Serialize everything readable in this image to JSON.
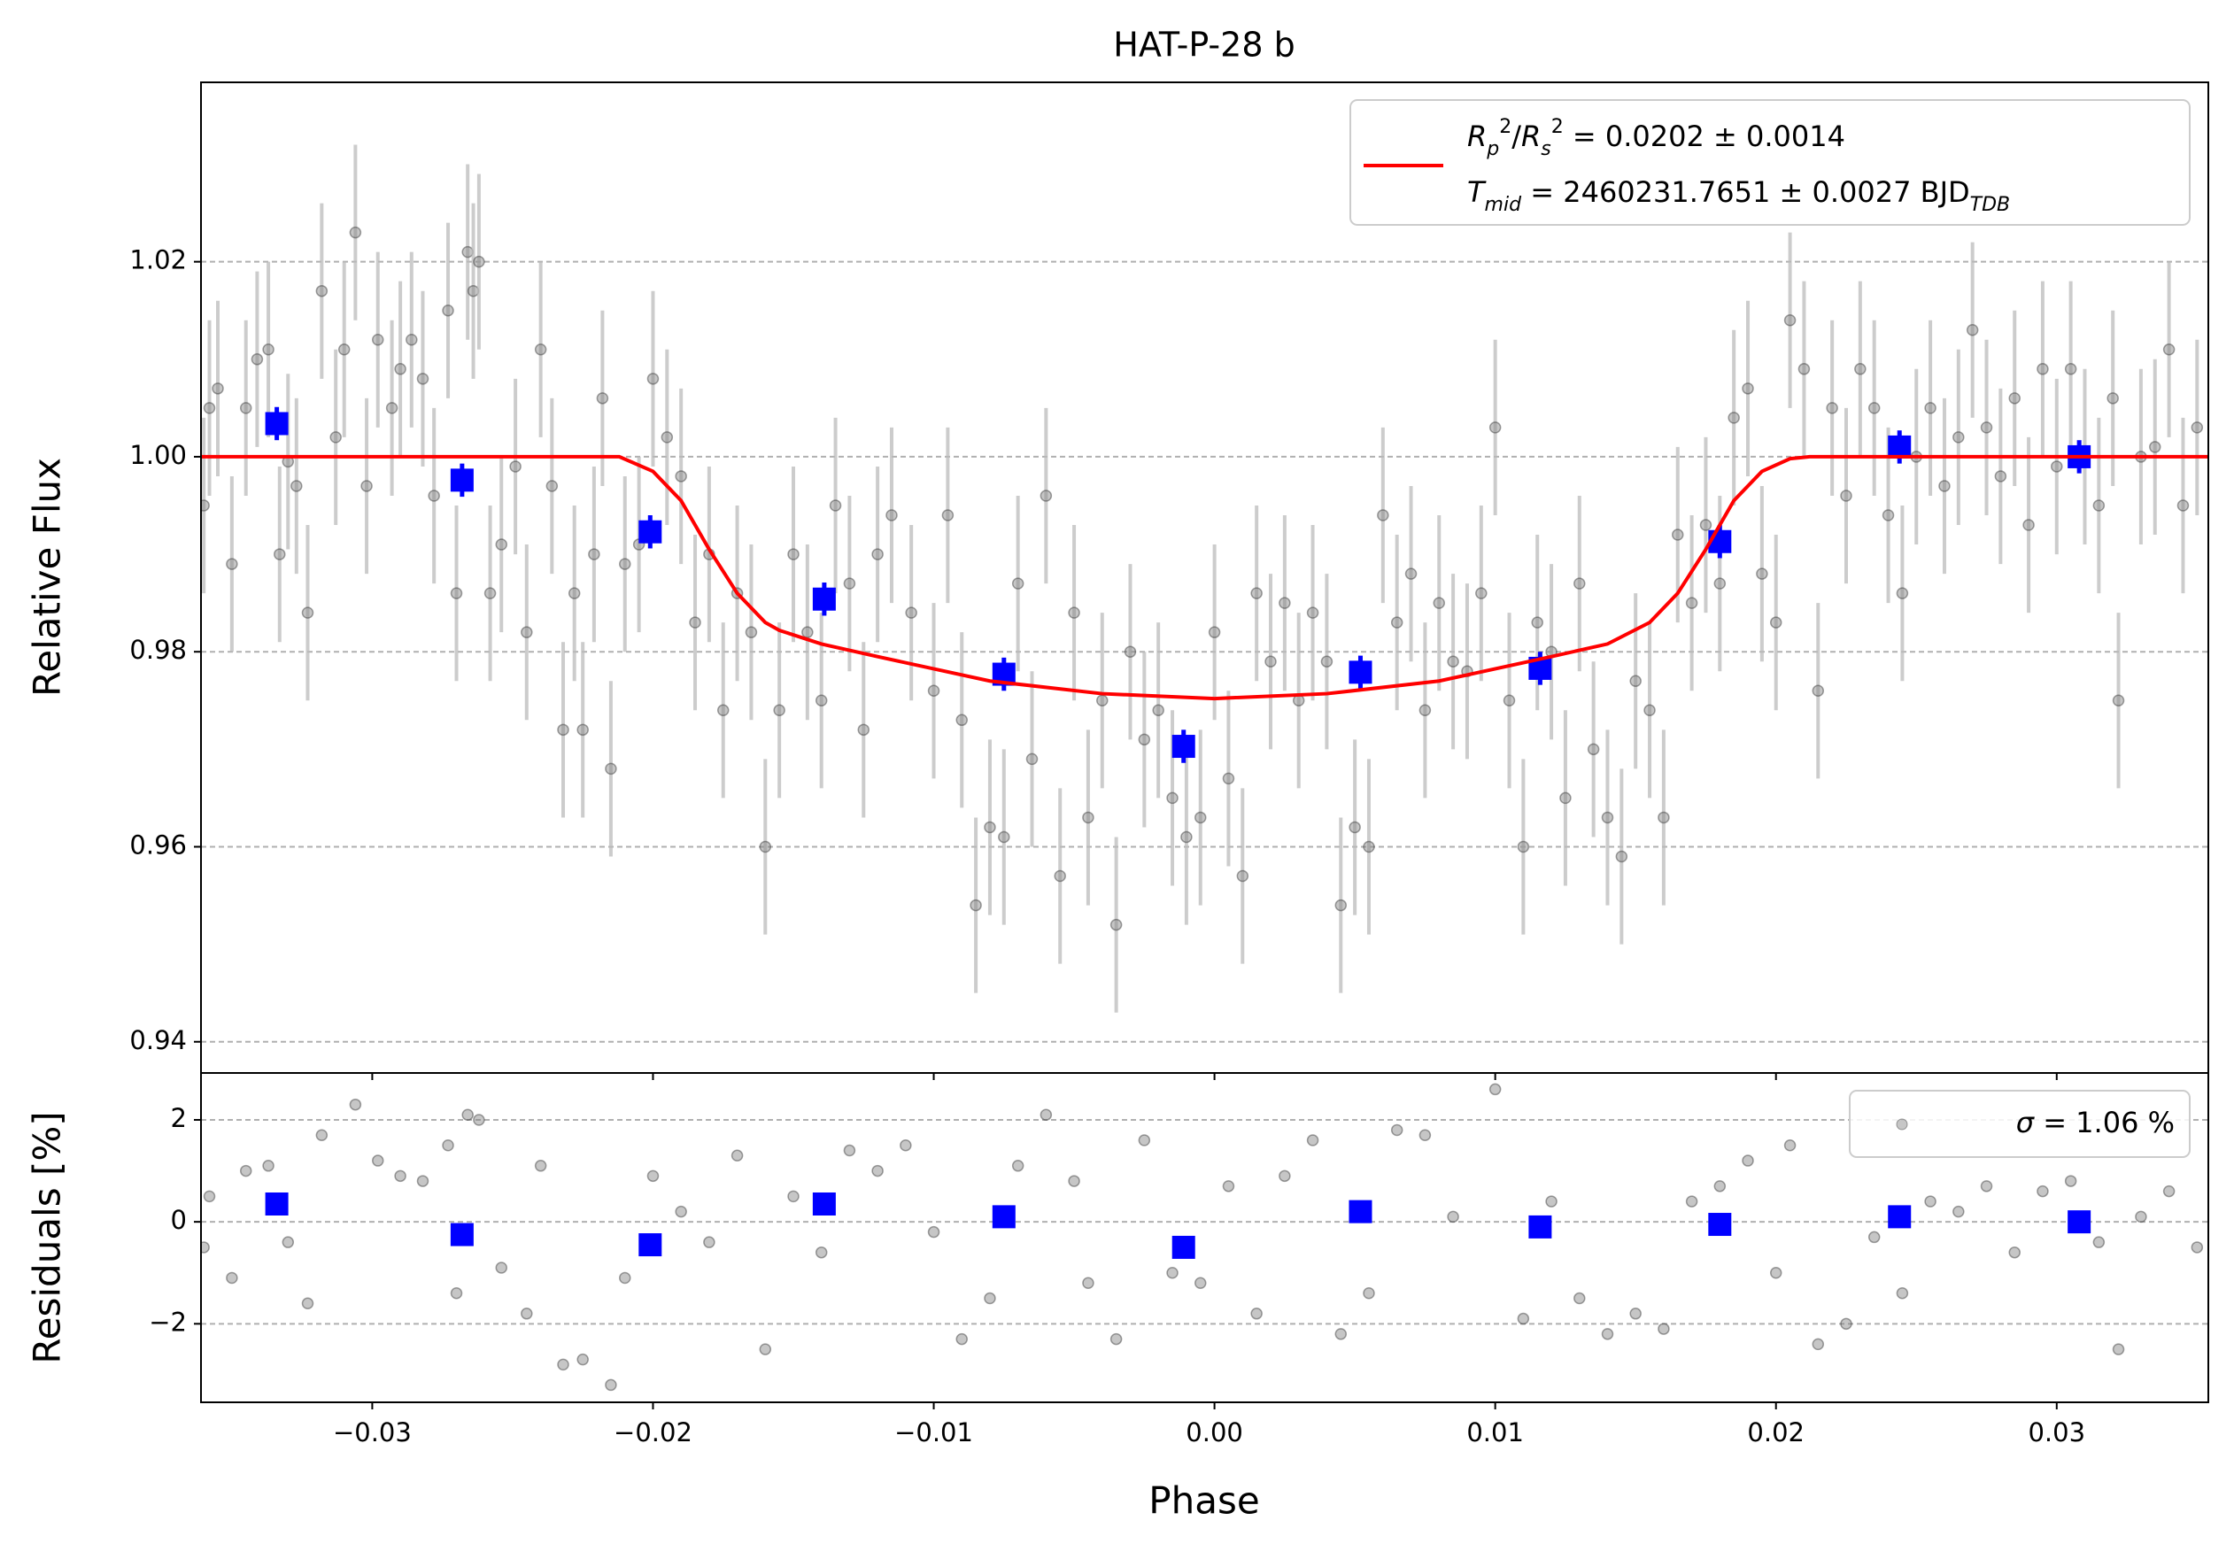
{
  "chart_data": [
    {
      "type": "errorbar",
      "title": "HAT-P-28 b",
      "ylabel": "Relative Flux",
      "xlim": [
        -0.0361,
        0.0354
      ],
      "ylim": [
        0.9368,
        1.0384
      ],
      "yticks": [
        0.94,
        0.96,
        0.98,
        {
          "value": 1.0,
          "label": "1.00"
        },
        1.02
      ],
      "grid": "y",
      "legend": "upper right",
      "series": [
        {
          "marker": "circle",
          "color": "#808080",
          "yerr": 0.009,
          "x": [
            -0.036,
            -0.0358,
            -0.0355,
            -0.035,
            -0.0345,
            -0.0341,
            -0.0337,
            -0.0333,
            -0.033,
            -0.0327,
            -0.0323,
            -0.0318,
            -0.0313,
            -0.031,
            -0.0306,
            -0.0302,
            -0.0298,
            -0.0293,
            -0.029,
            -0.0286,
            -0.0282,
            -0.0278,
            -0.0273,
            -0.027,
            -0.0266,
            -0.0264,
            -0.0262,
            -0.0258,
            -0.0254,
            -0.0249,
            -0.0245,
            -0.024,
            -0.0236,
            -0.0232,
            -0.0228,
            -0.0225,
            -0.0221,
            -0.0218,
            -0.0215,
            -0.021,
            -0.0205,
            -0.02,
            -0.0195,
            -0.019,
            -0.0185,
            -0.018,
            -0.0175,
            -0.017,
            -0.0165,
            -0.016,
            -0.0155,
            -0.015,
            -0.0145,
            -0.014,
            -0.0135,
            -0.013,
            -0.0125,
            -0.012,
            -0.0115,
            -0.0108,
            -0.01,
            -0.0095,
            -0.009,
            -0.0085,
            -0.008,
            -0.0075,
            -0.007,
            -0.0065,
            -0.006,
            -0.0055,
            -0.005,
            -0.0045,
            -0.004,
            -0.0035,
            -0.003,
            -0.0025,
            -0.002,
            -0.0015,
            -0.001,
            -0.0005,
            0.0,
            0.0005,
            0.001,
            0.0015,
            0.002,
            0.0025,
            0.003,
            0.0035,
            0.004,
            0.0045,
            0.005,
            0.0055,
            0.006,
            0.0065,
            0.007,
            0.0075,
            0.008,
            0.0085,
            0.009,
            0.0095,
            0.01,
            0.0105,
            0.011,
            0.0115,
            0.012,
            0.0125,
            0.013,
            0.0135,
            0.014,
            0.0145,
            0.015,
            0.0155,
            0.016,
            0.0165,
            0.017,
            0.0175,
            0.018,
            0.0185,
            0.019,
            0.0195,
            0.02,
            0.0205,
            0.021,
            0.0215,
            0.022,
            0.0225,
            0.023,
            0.0235,
            0.024,
            0.0245,
            0.025,
            0.0255,
            0.026,
            0.0265,
            0.027,
            0.0275,
            0.028,
            0.0285,
            0.029,
            0.0295,
            0.03,
            0.0305,
            0.031,
            0.0315,
            0.032,
            0.0322,
            0.033,
            0.0335,
            0.034,
            0.0345,
            0.035
          ],
          "values": [
            0.995,
            1.005,
            1.007,
            0.989,
            1.005,
            1.01,
            1.011,
            0.99,
            0.9995,
            0.997,
            0.984,
            1.017,
            1.002,
            1.011,
            1.023,
            0.997,
            1.012,
            1.005,
            1.009,
            1.012,
            1.008,
            0.996,
            1.015,
            0.986,
            1.021,
            1.017,
            1.02,
            0.986,
            0.991,
            0.999,
            0.982,
            1.011,
            0.997,
            0.972,
            0.986,
            0.972,
            0.99,
            1.006,
            0.968,
            0.989,
            0.991,
            1.008,
            1.002,
            0.998,
            0.983,
            0.99,
            0.974,
            0.986,
            0.982,
            0.96,
            0.974,
            0.99,
            0.982,
            0.975,
            0.995,
            0.987,
            0.972,
            0.99,
            0.994,
            0.984,
            0.976,
            0.994,
            0.973,
            0.954,
            0.962,
            0.961,
            0.987,
            0.969,
            0.996,
            0.957,
            0.984,
            0.963,
            0.975,
            0.952,
            0.98,
            0.971,
            0.974,
            0.965,
            0.961,
            0.963,
            0.982,
            0.967,
            0.957,
            0.986,
            0.979,
            0.985,
            0.975,
            0.984,
            0.979,
            0.954,
            0.962,
            0.96,
            0.994,
            0.983,
            0.988,
            0.974,
            0.985,
            0.979,
            0.978,
            0.986,
            1.003,
            0.975,
            0.96,
            0.983,
            0.98,
            0.965,
            0.987,
            0.97,
            0.963,
            0.959,
            0.977,
            0.974,
            0.963,
            0.992,
            0.985,
            0.993,
            0.987,
            1.004,
            1.007,
            0.988,
            0.983,
            1.014,
            1.009,
            0.976,
            1.005,
            0.996,
            1.009,
            1.005,
            0.994,
            0.986,
            1.0,
            1.005,
            0.997,
            1.002,
            1.013,
            1.003,
            0.998,
            1.006,
            0.993,
            1.009,
            0.999,
            1.009,
            1.0,
            0.995,
            1.006,
            0.975,
            1.0,
            1.001,
            1.011,
            0.995,
            1.003
          ]
        },
        {
          "marker": "square",
          "color": "#0000ff",
          "yerr": 0.0017,
          "x": [
            -0.0334,
            -0.0268,
            -0.0201,
            -0.0139,
            -0.0075,
            -0.0011,
            0.0052,
            0.0116,
            0.018,
            0.0244,
            0.0308
          ],
          "values": [
            1.0034,
            0.9976,
            0.9923,
            0.9854,
            0.9777,
            0.9703,
            0.9779,
            0.9783,
            0.9913,
            1.001,
            1.0
          ]
        },
        {
          "marker": "line",
          "color": "#ff0000",
          "name": [
            "R",
            "p",
            "2",
            "/",
            "R",
            "s",
            "2",
            " = 0.0202 ± 0.0014"
          ],
          "name2": [
            "T",
            "mid",
            " = 2460231.7651 ± 0.0027 BJD",
            "TDB"
          ],
          "x": [
            -0.0361,
            -0.0212,
            -0.02,
            -0.019,
            -0.018,
            -0.017,
            -0.016,
            -0.0155,
            -0.014,
            -0.012,
            -0.008,
            -0.004,
            0.0,
            0.004,
            0.008,
            0.012,
            0.014,
            0.0155,
            0.0165,
            0.0175,
            0.0185,
            0.0195,
            0.0205,
            0.0212,
            0.0354
          ],
          "values": [
            1.0,
            1.0,
            0.9985,
            0.9955,
            0.9905,
            0.986,
            0.983,
            0.9822,
            0.9808,
            0.9795,
            0.977,
            0.9757,
            0.9752,
            0.9757,
            0.977,
            0.9795,
            0.9808,
            0.983,
            0.986,
            0.9905,
            0.9955,
            0.9985,
            0.9998,
            1.0,
            1.0
          ]
        }
      ]
    },
    {
      "type": "scatter",
      "xlabel": "Phase",
      "ylabel": "Residuals [%]",
      "xlim": [
        -0.0361,
        0.0354
      ],
      "ylim": [
        -3.54,
        2.92
      ],
      "xticks": [
        {
          "value": -0.03,
          "label": "−0.03"
        },
        {
          "value": -0.02,
          "label": "−0.02"
        },
        {
          "value": -0.01,
          "label": "−0.01"
        },
        {
          "value": 0,
          "label": "0.00"
        },
        0.01,
        0.02,
        0.03
      ],
      "yticks": [
        {
          "value": -2,
          "label": "−2"
        },
        0,
        2
      ],
      "grid": "y",
      "legend": "upper right",
      "legend_text": [
        "σ",
        " = 1.06 %"
      ],
      "series": [
        {
          "marker": "circle",
          "color": "#808080",
          "x": [
            -0.036,
            -0.0358,
            -0.035,
            -0.0345,
            -0.0337,
            -0.033,
            -0.0323,
            -0.0318,
            -0.0306,
            -0.0298,
            -0.029,
            -0.0282,
            -0.0273,
            -0.027,
            -0.0266,
            -0.0262,
            -0.0254,
            -0.0245,
            -0.024,
            -0.0232,
            -0.0225,
            -0.0215,
            -0.021,
            -0.02,
            -0.019,
            -0.018,
            -0.017,
            -0.016,
            -0.015,
            -0.014,
            -0.013,
            -0.012,
            -0.011,
            -0.01,
            -0.009,
            -0.008,
            -0.007,
            -0.006,
            -0.005,
            -0.0045,
            -0.0035,
            -0.0025,
            -0.0015,
            -0.0005,
            0.0005,
            0.0015,
            0.0025,
            0.0035,
            0.0045,
            0.0055,
            0.0065,
            0.0075,
            0.0085,
            0.01,
            0.011,
            0.012,
            0.013,
            0.014,
            0.015,
            0.016,
            0.017,
            0.018,
            0.019,
            0.02,
            0.0205,
            0.0215,
            0.0225,
            0.0235,
            0.0245,
            0.0255,
            0.0265,
            0.0275,
            0.0285,
            0.0295,
            0.0305,
            0.0315,
            0.0322,
            0.033,
            0.034,
            0.035
          ],
          "values": [
            -0.5,
            0.5,
            -1.1,
            1.0,
            1.1,
            -0.4,
            -1.6,
            1.7,
            2.3,
            1.2,
            0.9,
            0.8,
            1.5,
            -1.4,
            2.1,
            2.0,
            -0.9,
            -1.8,
            1.1,
            -2.8,
            -2.7,
            -3.2,
            -1.1,
            0.9,
            0.2,
            -0.4,
            1.3,
            -2.5,
            0.5,
            -0.6,
            1.4,
            1.0,
            1.5,
            -0.2,
            -2.3,
            -1.5,
            1.1,
            2.1,
            0.8,
            -1.2,
            -2.3,
            1.6,
            -1.0,
            -1.2,
            0.7,
            -1.8,
            0.9,
            1.6,
            -2.2,
            -1.4,
            1.8,
            1.7,
            0.1,
            2.6,
            -1.9,
            0.4,
            -1.5,
            -2.2,
            -1.8,
            -2.1,
            0.4,
            0.7,
            1.2,
            -1.0,
            1.5,
            -2.4,
            -2.0,
            -0.3,
            -1.4,
            0.4,
            0.2,
            0.7,
            -0.6,
            0.6,
            0.8,
            -0.4,
            -2.5,
            0.1,
            0.6,
            -0.5
          ]
        },
        {
          "marker": "square",
          "color": "#0000ff",
          "x": [
            -0.0334,
            -0.0268,
            -0.0201,
            -0.0139,
            -0.0075,
            -0.0011,
            0.0052,
            0.0116,
            0.018,
            0.0244,
            0.0308
          ],
          "values": [
            0.35,
            -0.25,
            -0.45,
            0.35,
            0.1,
            -0.5,
            0.2,
            -0.1,
            -0.05,
            0.1,
            0.0
          ]
        }
      ]
    }
  ]
}
